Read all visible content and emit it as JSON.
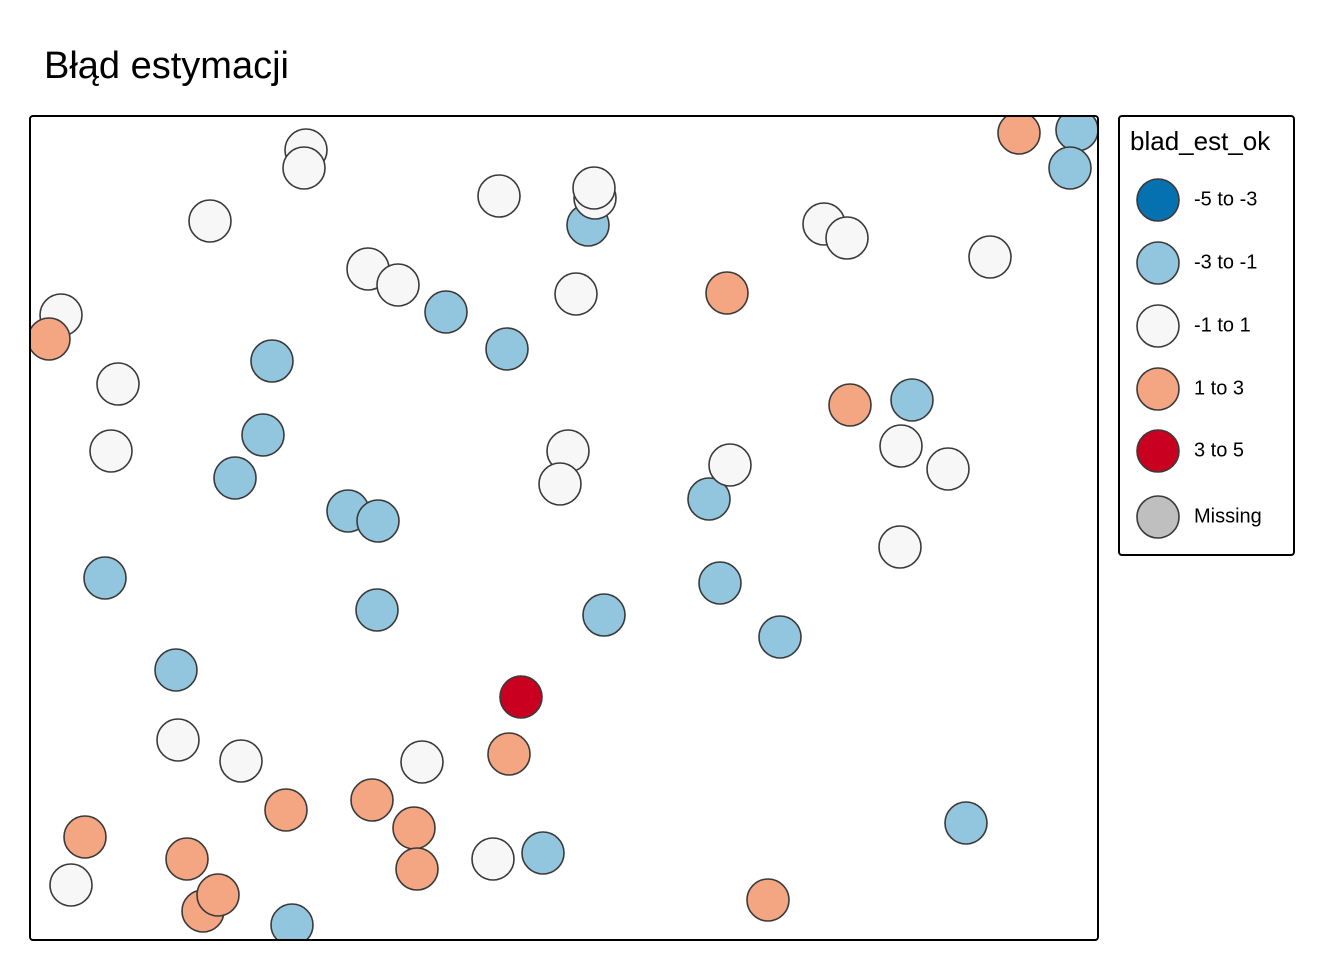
{
  "chart_data": {
    "type": "symbol-map",
    "title": "Błąd estymacji",
    "legend_title": "blad_est_ok",
    "legend_position": "right",
    "xlim": [
      30,
      1098
    ],
    "ylim": [
      940,
      116
    ],
    "series": [
      {
        "name": "-5 to -3",
        "color": "#0571b0",
        "x": [],
        "y": []
      },
      {
        "name": "-3 to -1",
        "color": "#92c5de",
        "x": [
          1077,
          1070,
          588,
          446,
          507,
          272,
          263,
          235,
          912,
          348,
          378,
          709,
          105,
          377,
          604,
          720,
          780,
          176,
          543,
          966,
          292
        ],
        "y": [
          130,
          168,
          225,
          312,
          349,
          361,
          435,
          478,
          400,
          511,
          521,
          499,
          578,
          610,
          615,
          583,
          637,
          670,
          853,
          823,
          925
        ]
      },
      {
        "name": "-1 to 1",
        "color": "#f7f7f7",
        "x": [
          306,
          304,
          210,
          499,
          595,
          594,
          824,
          847,
          990,
          368,
          398,
          576,
          61,
          118,
          111,
          568,
          560,
          730,
          901,
          948,
          900,
          178,
          241,
          422,
          493,
          71
        ],
        "y": [
          150,
          168,
          221,
          196,
          198,
          188,
          224,
          238,
          257,
          269,
          285,
          294,
          315,
          384,
          451,
          451,
          484,
          465,
          446,
          469,
          547,
          740,
          761,
          762,
          859,
          885
        ]
      },
      {
        "name": "1 to 3",
        "color": "#f4a582",
        "x": [
          1019,
          727,
          49,
          850,
          509,
          286,
          372,
          414,
          417,
          85,
          187,
          203,
          218,
          768
        ],
        "y": [
          133,
          293,
          339,
          405,
          754,
          810,
          800,
          828,
          869,
          837,
          859,
          911,
          895,
          900
        ]
      },
      {
        "name": "3 to 5",
        "color": "#ca0020",
        "x": [
          521
        ],
        "y": [
          697
        ]
      },
      {
        "name": "Missing",
        "color": "#bfbfbf",
        "x": [],
        "y": []
      }
    ]
  }
}
